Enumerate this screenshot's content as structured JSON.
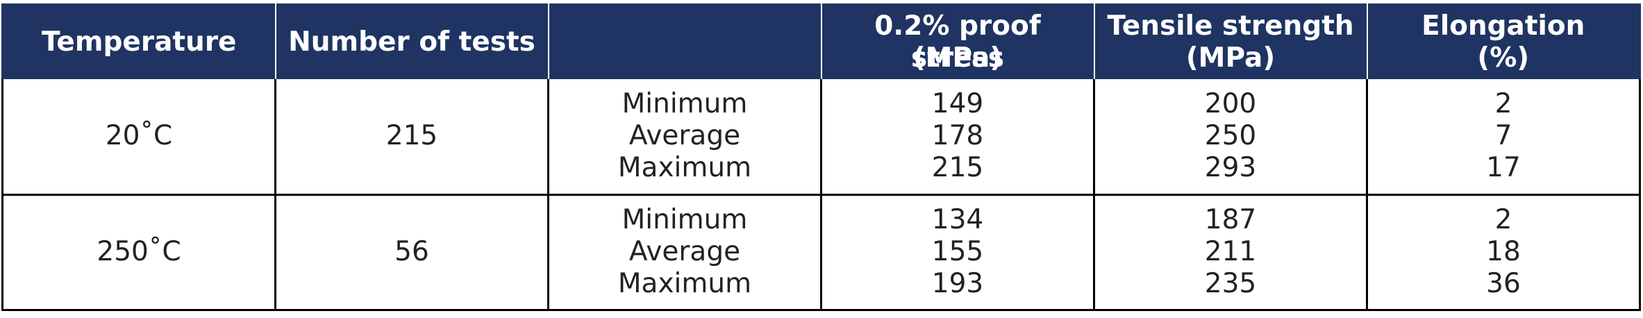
{
  "headers": {
    "temperature": "Temperature",
    "tests": "Number of tests",
    "stat": "",
    "proof_line1": "0.2% proof stress",
    "proof_line2": "(MPa)",
    "tensile_line1": "Tensile strength",
    "tensile_line2": "(MPa)",
    "elong_line1": "Elongation",
    "elong_line2": "(%)"
  },
  "rows": [
    {
      "temperature": "20˚C",
      "tests": "215",
      "stats": [
        "Minimum",
        "Average",
        "Maximum"
      ],
      "proof": [
        "149",
        "178",
        "215"
      ],
      "tensile": [
        "200",
        "250",
        "293"
      ],
      "elongation": [
        "2",
        "7",
        "17"
      ]
    },
    {
      "temperature": "250˚C",
      "tests": "56",
      "stats": [
        "Minimum",
        "Average",
        "Maximum"
      ],
      "proof": [
        "134",
        "155",
        "193"
      ],
      "tensile": [
        "187",
        "211",
        "235"
      ],
      "elongation": [
        "2",
        "18",
        "36"
      ]
    }
  ],
  "colors": {
    "header_bg": "#1f3462",
    "header_text": "#ffffff",
    "body_text": "#222222",
    "border": "#000000"
  }
}
